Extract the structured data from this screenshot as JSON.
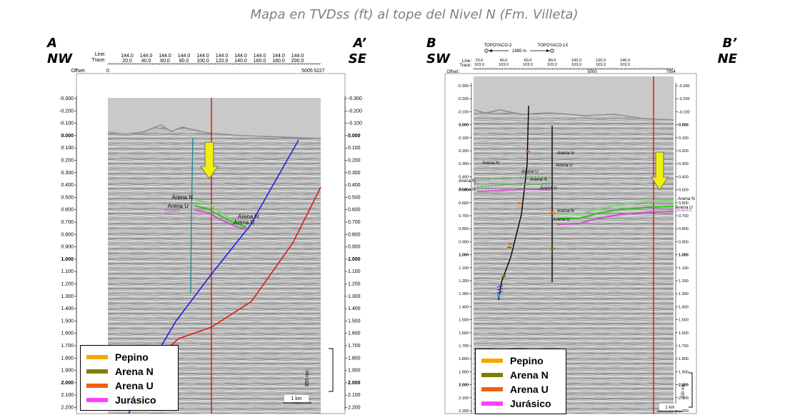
{
  "title": "Mapa en TVDss (ft) al tope del Nivel N (Fm. Villeta)",
  "left_panel": {
    "start_label": "A",
    "start_dir": "NW",
    "end_label": "A’",
    "end_dir": "SE",
    "header": {
      "line_label": "Line:",
      "trace_label": "Trace:",
      "offset_label": "Offset:",
      "offset_start": "0",
      "offset_mid": "5005",
      "offset_end": "5227",
      "lines": [
        "144.0",
        "144.0",
        "144.0",
        "144.0",
        "144.0",
        "144.0",
        "144.0",
        "144.0",
        "144.0",
        "144.0"
      ],
      "traces": [
        "20.0",
        "40.0",
        "60.0",
        "80.0",
        "100.0",
        "120.0",
        "140.0",
        "160.0",
        "180.0",
        "200.0"
      ]
    },
    "depth_ticks": [
      "-0.300",
      "-0.200",
      "-0.100",
      "0.000",
      "0.100",
      "0.200",
      "0.300",
      "0.400",
      "0.500",
      "0.600",
      "0.700",
      "0.800",
      "0.900",
      "1.000",
      "1.100",
      "1.200",
      "1.300",
      "1.400",
      "1.500",
      "1.600",
      "1.700",
      "1.800",
      "1.900",
      "2.000",
      "2.100",
      "2.200"
    ],
    "horizon_labels": [
      {
        "text": "Arena N",
        "color": "#000000"
      },
      {
        "text": "Arena U",
        "color": "#000000"
      },
      {
        "text": "Jurásico",
        "color": "#e040e0"
      },
      {
        "text": "Arena N",
        "color": "#000000"
      },
      {
        "text": "Arena U",
        "color": "#000000"
      }
    ],
    "vscale_label": "350 ms",
    "hscale_label": "1 km"
  },
  "right_panel": {
    "start_label": "B",
    "start_dir": "SW",
    "end_label": "B’",
    "end_dir": "NE",
    "wells": {
      "left": "TOPOYACO-2",
      "right": "TOPOYACO-1X",
      "distance": "1985 m"
    },
    "header": {
      "line_label": "Line:",
      "trace_label": "Trace:",
      "offset_label": "Offset:",
      "offset_mid": "5000",
      "offset_end": "7954",
      "lines": [
        "20.0",
        "40.0",
        "60.0",
        "80.0",
        "100.0",
        "120.0",
        "140.0"
      ],
      "traces": [
        "103.0",
        "103.0",
        "103.0",
        "103.0",
        "103.0",
        "103.0",
        "103.0"
      ]
    },
    "depth_ticks": [
      "-0.300",
      "-0.200",
      "-0.100",
      "0.000",
      "0.100",
      "0.200",
      "0.300",
      "0.400",
      "0.500",
      "0.600",
      "0.700",
      "0.800",
      "0.900",
      "1.000",
      "1.100",
      "1.200",
      "1.300",
      "1.400",
      "1.500",
      "1.600",
      "1.700",
      "1.800",
      "1.900",
      "2.000",
      "2.100",
      "2.200"
    ],
    "horizon_labels": [
      {
        "text": "Arena N",
        "color": "#000000"
      },
      {
        "text": "Arena U",
        "color": "#000000"
      },
      {
        "text": "Arena N",
        "color": "#000000"
      },
      {
        "text": "Arena U",
        "color": "#000000"
      },
      {
        "text": "Arena N",
        "color": "#000000"
      },
      {
        "text": "Arena U",
        "color": "#000000"
      },
      {
        "text": "Arena N",
        "color": "#000000"
      },
      {
        "text": "Arena U",
        "color": "#000000"
      },
      {
        "text": "Arena N",
        "color": "#000000"
      },
      {
        "text": "Arena U",
        "color": "#000000"
      },
      {
        "text": "Jurásico",
        "color": "#e040e0"
      }
    ],
    "vscale_label": "200 ms",
    "hscale_label": "1 km"
  },
  "legend": [
    {
      "label": "Pepino",
      "color": "#f5a800"
    },
    {
      "label": "Arena N",
      "color": "#808000"
    },
    {
      "label": "Arena U",
      "color": "#f06010"
    },
    {
      "label": "Jurásico",
      "color": "#ff40ff"
    }
  ]
}
